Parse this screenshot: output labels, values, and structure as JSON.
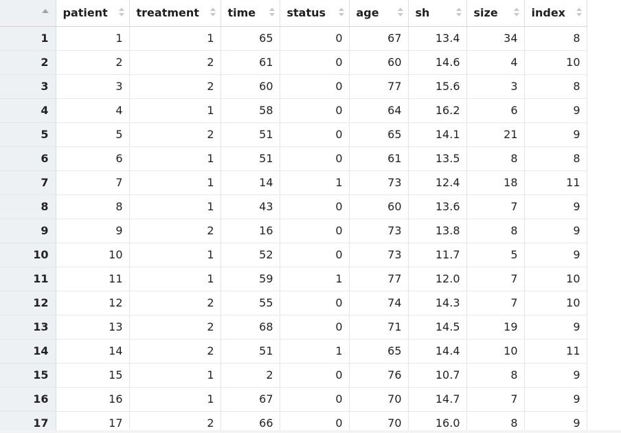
{
  "columns": [
    "patient",
    "treatment",
    "time",
    "status",
    "age",
    "sh",
    "size",
    "index"
  ],
  "rows": [
    {
      "n": "1",
      "patient": "1",
      "treatment": "1",
      "time": "65",
      "status": "0",
      "age": "67",
      "sh": "13.4",
      "size": "34",
      "index": "8"
    },
    {
      "n": "2",
      "patient": "2",
      "treatment": "2",
      "time": "61",
      "status": "0",
      "age": "60",
      "sh": "14.6",
      "size": "4",
      "index": "10"
    },
    {
      "n": "3",
      "patient": "3",
      "treatment": "2",
      "time": "60",
      "status": "0",
      "age": "77",
      "sh": "15.6",
      "size": "3",
      "index": "8"
    },
    {
      "n": "4",
      "patient": "4",
      "treatment": "1",
      "time": "58",
      "status": "0",
      "age": "64",
      "sh": "16.2",
      "size": "6",
      "index": "9"
    },
    {
      "n": "5",
      "patient": "5",
      "treatment": "2",
      "time": "51",
      "status": "0",
      "age": "65",
      "sh": "14.1",
      "size": "21",
      "index": "9"
    },
    {
      "n": "6",
      "patient": "6",
      "treatment": "1",
      "time": "51",
      "status": "0",
      "age": "61",
      "sh": "13.5",
      "size": "8",
      "index": "8"
    },
    {
      "n": "7",
      "patient": "7",
      "treatment": "1",
      "time": "14",
      "status": "1",
      "age": "73",
      "sh": "12.4",
      "size": "18",
      "index": "11"
    },
    {
      "n": "8",
      "patient": "8",
      "treatment": "1",
      "time": "43",
      "status": "0",
      "age": "60",
      "sh": "13.6",
      "size": "7",
      "index": "9"
    },
    {
      "n": "9",
      "patient": "9",
      "treatment": "2",
      "time": "16",
      "status": "0",
      "age": "73",
      "sh": "13.8",
      "size": "8",
      "index": "9"
    },
    {
      "n": "10",
      "patient": "10",
      "treatment": "1",
      "time": "52",
      "status": "0",
      "age": "73",
      "sh": "11.7",
      "size": "5",
      "index": "9"
    },
    {
      "n": "11",
      "patient": "11",
      "treatment": "1",
      "time": "59",
      "status": "1",
      "age": "77",
      "sh": "12.0",
      "size": "7",
      "index": "10"
    },
    {
      "n": "12",
      "patient": "12",
      "treatment": "2",
      "time": "55",
      "status": "0",
      "age": "74",
      "sh": "14.3",
      "size": "7",
      "index": "10"
    },
    {
      "n": "13",
      "patient": "13",
      "treatment": "2",
      "time": "68",
      "status": "0",
      "age": "71",
      "sh": "14.5",
      "size": "19",
      "index": "9"
    },
    {
      "n": "14",
      "patient": "14",
      "treatment": "2",
      "time": "51",
      "status": "1",
      "age": "65",
      "sh": "14.4",
      "size": "10",
      "index": "11"
    },
    {
      "n": "15",
      "patient": "15",
      "treatment": "1",
      "time": "2",
      "status": "0",
      "age": "76",
      "sh": "10.7",
      "size": "8",
      "index": "9"
    },
    {
      "n": "16",
      "patient": "16",
      "treatment": "1",
      "time": "67",
      "status": "0",
      "age": "70",
      "sh": "14.7",
      "size": "7",
      "index": "9"
    },
    {
      "n": "17",
      "patient": "17",
      "treatment": "2",
      "time": "66",
      "status": "0",
      "age": "70",
      "sh": "16.0",
      "size": "8",
      "index": "9"
    }
  ]
}
